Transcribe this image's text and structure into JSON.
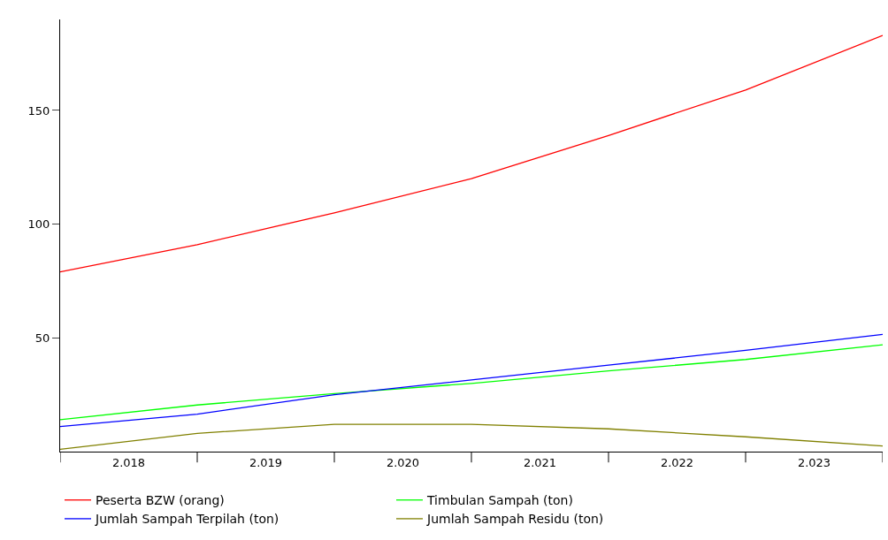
{
  "chart_data": {
    "type": "line",
    "x": [
      2017.5,
      2018.5,
      2019.5,
      2020.5,
      2021.5,
      2022.5,
      2023.5
    ],
    "series": [
      {
        "name": "Peserta BZW (orang)",
        "color": "#ff0000",
        "values": [
          79,
          91,
          105,
          120,
          139,
          159,
          183
        ]
      },
      {
        "name": "Timbulan Sampah (ton)",
        "color": "#00ff00",
        "values": [
          14,
          20.5,
          25.5,
          30,
          35.5,
          40.5,
          47
        ]
      },
      {
        "name": "Jumlah Sampah Terpilah (ton)",
        "color": "#0000ff",
        "values": [
          11,
          16.5,
          25,
          31.5,
          38,
          44.5,
          51.5
        ]
      },
      {
        "name": "Jumlah Sampah Residu (ton)",
        "color": "#808000",
        "values": [
          1,
          8,
          12,
          12,
          10,
          6.5,
          2.5
        ]
      }
    ],
    "xlim": [
      2017.5,
      2023.5
    ],
    "xticks": [
      {
        "value": 2017.5,
        "label": null
      },
      {
        "value": 2018,
        "label": "2.018"
      },
      {
        "value": 2018.5,
        "label": null
      },
      {
        "value": 2019,
        "label": "2.019"
      },
      {
        "value": 2019.5,
        "label": null
      },
      {
        "value": 2020,
        "label": "2.020"
      },
      {
        "value": 2020.5,
        "label": null
      },
      {
        "value": 2021,
        "label": "2.021"
      },
      {
        "value": 2021.5,
        "label": null
      },
      {
        "value": 2022,
        "label": "2.022"
      },
      {
        "value": 2022.5,
        "label": null
      },
      {
        "value": 2023,
        "label": "2.023"
      },
      {
        "value": 2023.5,
        "label": null
      }
    ],
    "ylim": [
      0,
      190
    ],
    "yticks": [
      50,
      100,
      150
    ],
    "grid": false,
    "legend": "bottom",
    "marker": "none",
    "line_style": "solid"
  }
}
